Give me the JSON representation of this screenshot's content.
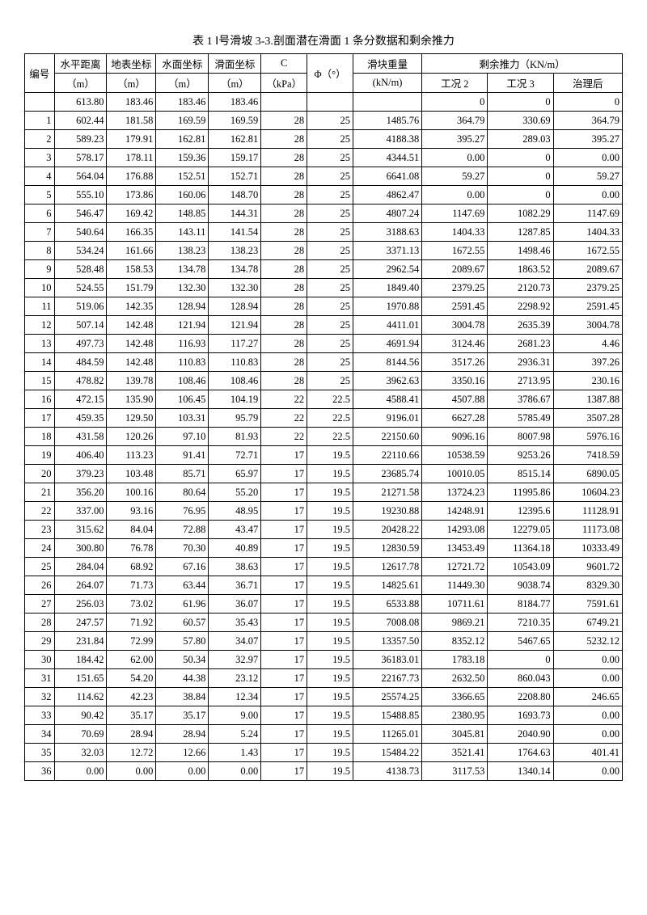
{
  "title": "表 1  Ⅰ号滑坡 3-3.剖面潜在滑面 1 条分数据和剩余推力",
  "headers": {
    "id": "编号",
    "hd": "水平距离",
    "gc": "地表坐标",
    "wc": "水面坐标",
    "sc": "滑面坐标",
    "c": "C",
    "phi": "Φ（°）",
    "wt": "滑块重量",
    "residual": "剩余推力（KN/m）",
    "unit_m": "（m）",
    "unit_kpa": "（kPa）",
    "unit_knm": "(kN/m)",
    "r1": "工况 2",
    "r2": "工况 3",
    "r3": "治理后"
  },
  "rows": [
    {
      "id": "",
      "hd": "613.80",
      "gc": "183.46",
      "wc": "183.46",
      "sc": "183.46",
      "c": "",
      "phi": "",
      "wt": "",
      "r1": "0",
      "r2": "0",
      "r3": "0"
    },
    {
      "id": "1",
      "hd": "602.44",
      "gc": "181.58",
      "wc": "169.59",
      "sc": "169.59",
      "c": "28",
      "phi": "25",
      "wt": "1485.76",
      "r1": "364.79",
      "r2": "330.69",
      "r3": "364.79"
    },
    {
      "id": "2",
      "hd": "589.23",
      "gc": "179.91",
      "wc": "162.81",
      "sc": "162.81",
      "c": "28",
      "phi": "25",
      "wt": "4188.38",
      "r1": "395.27",
      "r2": "289.03",
      "r3": "395.27"
    },
    {
      "id": "3",
      "hd": "578.17",
      "gc": "178.11",
      "wc": "159.36",
      "sc": "159.17",
      "c": "28",
      "phi": "25",
      "wt": "4344.51",
      "r1": "0.00",
      "r2": "0",
      "r3": "0.00"
    },
    {
      "id": "4",
      "hd": "564.04",
      "gc": "176.88",
      "wc": "152.51",
      "sc": "152.71",
      "c": "28",
      "phi": "25",
      "wt": "6641.08",
      "r1": "59.27",
      "r2": "0",
      "r3": "59.27"
    },
    {
      "id": "5",
      "hd": "555.10",
      "gc": "173.86",
      "wc": "160.06",
      "sc": "148.70",
      "c": "28",
      "phi": "25",
      "wt": "4862.47",
      "r1": "0.00",
      "r2": "0",
      "r3": "0.00"
    },
    {
      "id": "6",
      "hd": "546.47",
      "gc": "169.42",
      "wc": "148.85",
      "sc": "144.31",
      "c": "28",
      "phi": "25",
      "wt": "4807.24",
      "r1": "1147.69",
      "r2": "1082.29",
      "r3": "1147.69"
    },
    {
      "id": "7",
      "hd": "540.64",
      "gc": "166.35",
      "wc": "143.11",
      "sc": "141.54",
      "c": "28",
      "phi": "25",
      "wt": "3188.63",
      "r1": "1404.33",
      "r2": "1287.85",
      "r3": "1404.33"
    },
    {
      "id": "8",
      "hd": "534.24",
      "gc": "161.66",
      "wc": "138.23",
      "sc": "138.23",
      "c": "28",
      "phi": "25",
      "wt": "3371.13",
      "r1": "1672.55",
      "r2": "1498.46",
      "r3": "1672.55"
    },
    {
      "id": "9",
      "hd": "528.48",
      "gc": "158.53",
      "wc": "134.78",
      "sc": "134.78",
      "c": "28",
      "phi": "25",
      "wt": "2962.54",
      "r1": "2089.67",
      "r2": "1863.52",
      "r3": "2089.67"
    },
    {
      "id": "10",
      "hd": "524.55",
      "gc": "151.79",
      "wc": "132.30",
      "sc": "132.30",
      "c": "28",
      "phi": "25",
      "wt": "1849.40",
      "r1": "2379.25",
      "r2": "2120.73",
      "r3": "2379.25"
    },
    {
      "id": "11",
      "hd": "519.06",
      "gc": "142.35",
      "wc": "128.94",
      "sc": "128.94",
      "c": "28",
      "phi": "25",
      "wt": "1970.88",
      "r1": "2591.45",
      "r2": "2298.92",
      "r3": "2591.45"
    },
    {
      "id": "12",
      "hd": "507.14",
      "gc": "142.48",
      "wc": "121.94",
      "sc": "121.94",
      "c": "28",
      "phi": "25",
      "wt": "4411.01",
      "r1": "3004.78",
      "r2": "2635.39",
      "r3": "3004.78"
    },
    {
      "id": "13",
      "hd": "497.73",
      "gc": "142.48",
      "wc": "116.93",
      "sc": "117.27",
      "c": "28",
      "phi": "25",
      "wt": "4691.94",
      "r1": "3124.46",
      "r2": "2681.23",
      "r3": "4.46"
    },
    {
      "id": "14",
      "hd": "484.59",
      "gc": "142.48",
      "wc": "110.83",
      "sc": "110.83",
      "c": "28",
      "phi": "25",
      "wt": "8144.56",
      "r1": "3517.26",
      "r2": "2936.31",
      "r3": "397.26"
    },
    {
      "id": "15",
      "hd": "478.82",
      "gc": "139.78",
      "wc": "108.46",
      "sc": "108.46",
      "c": "28",
      "phi": "25",
      "wt": "3962.63",
      "r1": "3350.16",
      "r2": "2713.95",
      "r3": "230.16"
    },
    {
      "id": "16",
      "hd": "472.15",
      "gc": "135.90",
      "wc": "106.45",
      "sc": "104.19",
      "c": "22",
      "phi": "22.5",
      "wt": "4588.41",
      "r1": "4507.88",
      "r2": "3786.67",
      "r3": "1387.88"
    },
    {
      "id": "17",
      "hd": "459.35",
      "gc": "129.50",
      "wc": "103.31",
      "sc": "95.79",
      "c": "22",
      "phi": "22.5",
      "wt": "9196.01",
      "r1": "6627.28",
      "r2": "5785.49",
      "r3": "3507.28"
    },
    {
      "id": "18",
      "hd": "431.58",
      "gc": "120.26",
      "wc": "97.10",
      "sc": "81.93",
      "c": "22",
      "phi": "22.5",
      "wt": "22150.60",
      "r1": "9096.16",
      "r2": "8007.98",
      "r3": "5976.16"
    },
    {
      "id": "19",
      "hd": "406.40",
      "gc": "113.23",
      "wc": "91.41",
      "sc": "72.71",
      "c": "17",
      "phi": "19.5",
      "wt": "22110.66",
      "r1": "10538.59",
      "r2": "9253.26",
      "r3": "7418.59"
    },
    {
      "id": "20",
      "hd": "379.23",
      "gc": "103.48",
      "wc": "85.71",
      "sc": "65.97",
      "c": "17",
      "phi": "19.5",
      "wt": "23685.74",
      "r1": "10010.05",
      "r2": "8515.14",
      "r3": "6890.05"
    },
    {
      "id": "21",
      "hd": "356.20",
      "gc": "100.16",
      "wc": "80.64",
      "sc": "55.20",
      "c": "17",
      "phi": "19.5",
      "wt": "21271.58",
      "r1": "13724.23",
      "r2": "11995.86",
      "r3": "10604.23"
    },
    {
      "id": "22",
      "hd": "337.00",
      "gc": "93.16",
      "wc": "76.95",
      "sc": "48.95",
      "c": "17",
      "phi": "19.5",
      "wt": "19230.88",
      "r1": "14248.91",
      "r2": "12395.6",
      "r3": "11128.91"
    },
    {
      "id": "23",
      "hd": "315.62",
      "gc": "84.04",
      "wc": "72.88",
      "sc": "43.47",
      "c": "17",
      "phi": "19.5",
      "wt": "20428.22",
      "r1": "14293.08",
      "r2": "12279.05",
      "r3": "11173.08"
    },
    {
      "id": "24",
      "hd": "300.80",
      "gc": "76.78",
      "wc": "70.30",
      "sc": "40.89",
      "c": "17",
      "phi": "19.5",
      "wt": "12830.59",
      "r1": "13453.49",
      "r2": "11364.18",
      "r3": "10333.49"
    },
    {
      "id": "25",
      "hd": "284.04",
      "gc": "68.92",
      "wc": "67.16",
      "sc": "38.63",
      "c": "17",
      "phi": "19.5",
      "wt": "12617.78",
      "r1": "12721.72",
      "r2": "10543.09",
      "r3": "9601.72"
    },
    {
      "id": "26",
      "hd": "264.07",
      "gc": "71.73",
      "wc": "63.44",
      "sc": "36.71",
      "c": "17",
      "phi": "19.5",
      "wt": "14825.61",
      "r1": "11449.30",
      "r2": "9038.74",
      "r3": "8329.30"
    },
    {
      "id": "27",
      "hd": "256.03",
      "gc": "73.02",
      "wc": "61.96",
      "sc": "36.07",
      "c": "17",
      "phi": "19.5",
      "wt": "6533.88",
      "r1": "10711.61",
      "r2": "8184.77",
      "r3": "7591.61"
    },
    {
      "id": "28",
      "hd": "247.57",
      "gc": "71.92",
      "wc": "60.57",
      "sc": "35.43",
      "c": "17",
      "phi": "19.5",
      "wt": "7008.08",
      "r1": "9869.21",
      "r2": "7210.35",
      "r3": "6749.21"
    },
    {
      "id": "29",
      "hd": "231.84",
      "gc": "72.99",
      "wc": "57.80",
      "sc": "34.07",
      "c": "17",
      "phi": "19.5",
      "wt": "13357.50",
      "r1": "8352.12",
      "r2": "5467.65",
      "r3": "5232.12"
    },
    {
      "id": "30",
      "hd": "184.42",
      "gc": "62.00",
      "wc": "50.34",
      "sc": "32.97",
      "c": "17",
      "phi": "19.5",
      "wt": "36183.01",
      "r1": "1783.18",
      "r2": "0",
      "r3": "0.00"
    },
    {
      "id": "31",
      "hd": "151.65",
      "gc": "54.20",
      "wc": "44.38",
      "sc": "23.12",
      "c": "17",
      "phi": "19.5",
      "wt": "22167.73",
      "r1": "2632.50",
      "r2": "860.043",
      "r3": "0.00"
    },
    {
      "id": "32",
      "hd": "114.62",
      "gc": "42.23",
      "wc": "38.84",
      "sc": "12.34",
      "c": "17",
      "phi": "19.5",
      "wt": "25574.25",
      "r1": "3366.65",
      "r2": "2208.80",
      "r3": "246.65"
    },
    {
      "id": "33",
      "hd": "90.42",
      "gc": "35.17",
      "wc": "35.17",
      "sc": "9.00",
      "c": "17",
      "phi": "19.5",
      "wt": "15488.85",
      "r1": "2380.95",
      "r2": "1693.73",
      "r3": "0.00"
    },
    {
      "id": "34",
      "hd": "70.69",
      "gc": "28.94",
      "wc": "28.94",
      "sc": "5.24",
      "c": "17",
      "phi": "19.5",
      "wt": "11265.01",
      "r1": "3045.81",
      "r2": "2040.90",
      "r3": "0.00"
    },
    {
      "id": "35",
      "hd": "32.03",
      "gc": "12.72",
      "wc": "12.66",
      "sc": "1.43",
      "c": "17",
      "phi": "19.5",
      "wt": "15484.22",
      "r1": "3521.41",
      "r2": "1764.63",
      "r3": "401.41"
    },
    {
      "id": "36",
      "hd": "0.00",
      "gc": "0.00",
      "wc": "0.00",
      "sc": "0.00",
      "c": "17",
      "phi": "19.5",
      "wt": "4138.73",
      "r1": "3117.53",
      "r2": "1340.14",
      "r3": "0.00"
    }
  ]
}
